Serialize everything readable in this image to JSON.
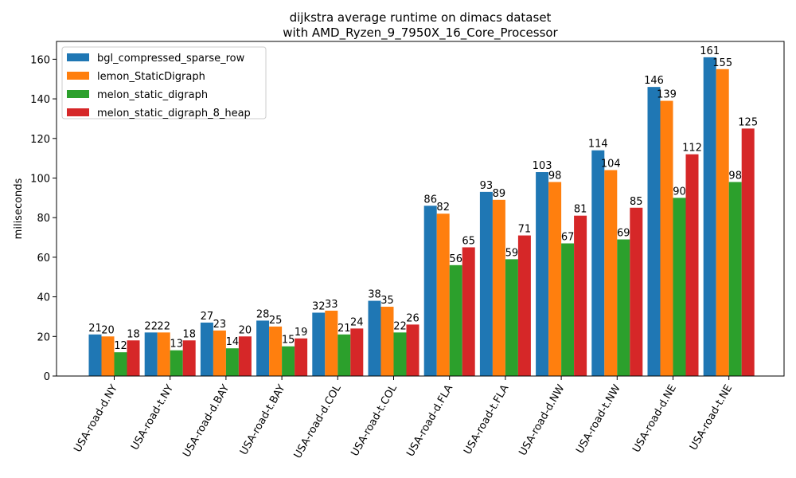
{
  "chart_data": {
    "type": "bar",
    "title": "dijkstra average runtime on dimacs dataset",
    "subtitle": "with AMD_Ryzen_9_7950X_16_Core_Processor",
    "xlabel": "",
    "ylabel": "miliseconds",
    "ylim": [
      0,
      169
    ],
    "yticks": [
      0,
      20,
      40,
      60,
      80,
      100,
      120,
      140,
      160
    ],
    "grid": false,
    "legend_position": "top-left",
    "categories": [
      "USA-road-d.NY",
      "USA-road-t.NY",
      "USA-road-d.BAY",
      "USA-road-t.BAY",
      "USA-road-d.COL",
      "USA-road-t.COL",
      "USA-road-d.FLA",
      "USA-road-t.FLA",
      "USA-road-d.NW",
      "USA-road-t.NW",
      "USA-road-d.NE",
      "USA-road-t.NE"
    ],
    "series": [
      {
        "name": "bgl_compressed_sparse_row",
        "color": "#1f77b4",
        "values": [
          21,
          22,
          27,
          28,
          32,
          38,
          86,
          93,
          103,
          114,
          146,
          161
        ]
      },
      {
        "name": "lemon_StaticDigraph",
        "color": "#ff7f0e",
        "values": [
          20,
          22,
          23,
          25,
          33,
          35,
          82,
          89,
          98,
          104,
          139,
          155
        ]
      },
      {
        "name": "melon_static_digraph",
        "color": "#2ca02c",
        "values": [
          12,
          13,
          14,
          15,
          21,
          22,
          56,
          59,
          67,
          69,
          90,
          98
        ]
      },
      {
        "name": "melon_static_digraph_8_heap",
        "color": "#d62728",
        "values": [
          18,
          18,
          20,
          19,
          24,
          26,
          65,
          71,
          81,
          85,
          112,
          125
        ]
      }
    ]
  }
}
